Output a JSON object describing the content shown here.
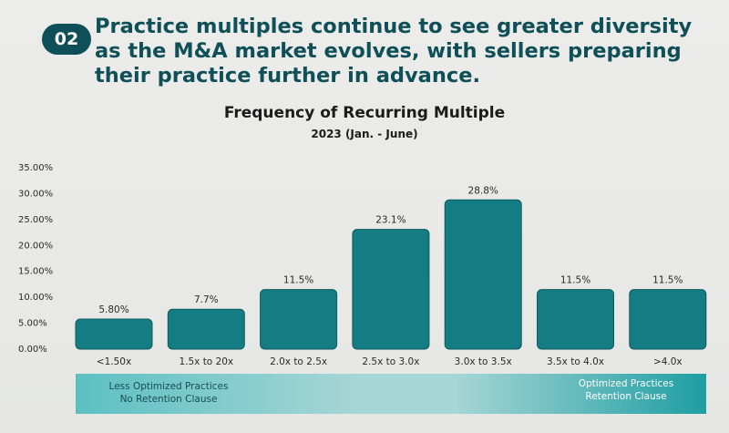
{
  "badge": "02",
  "headline": {
    "lines": [
      "Practice multiples continue to see greater diversity",
      "as the M&A market evolves, with sellers preparing",
      "their practice further in advance."
    ]
  },
  "footer": {
    "left": [
      "Less Optimized Practices",
      "No Retention Clause"
    ],
    "right": [
      "Optimized Practices",
      "Retention Clause"
    ]
  },
  "colors": {
    "bar": "#137d83",
    "bar_stroke": "#0d5a60",
    "headline": "#0f4f57"
  },
  "chart_data": {
    "type": "bar",
    "title": "Frequency of Recurring Multiple",
    "subtitle": "2023 (Jan. - June)",
    "xlabel": "",
    "ylabel": "",
    "categories": [
      "<1.50x",
      "1.5x to 20x",
      "2.0x to 2.5x",
      "2.5x to 3.0x",
      "3.0x to 3.5x",
      "3.5x to 4.0x",
      ">4.0x"
    ],
    "values": [
      5.8,
      7.7,
      11.5,
      23.1,
      28.8,
      11.5,
      11.5
    ],
    "data_labels": [
      "5.80%",
      "7.7%",
      "11.5%",
      "23.1%",
      "28.8%",
      "11.5%",
      "11.5%"
    ],
    "ylim": [
      0,
      35
    ],
    "yticks": [
      0,
      5,
      10,
      15,
      20,
      25,
      30,
      35
    ],
    "ytick_labels": [
      "0.00%",
      "5.00%",
      "10.00%",
      "15.00%",
      "20.00%",
      "25.00%",
      "30.00%",
      "35.00%"
    ],
    "grid": false,
    "legend": "none"
  }
}
